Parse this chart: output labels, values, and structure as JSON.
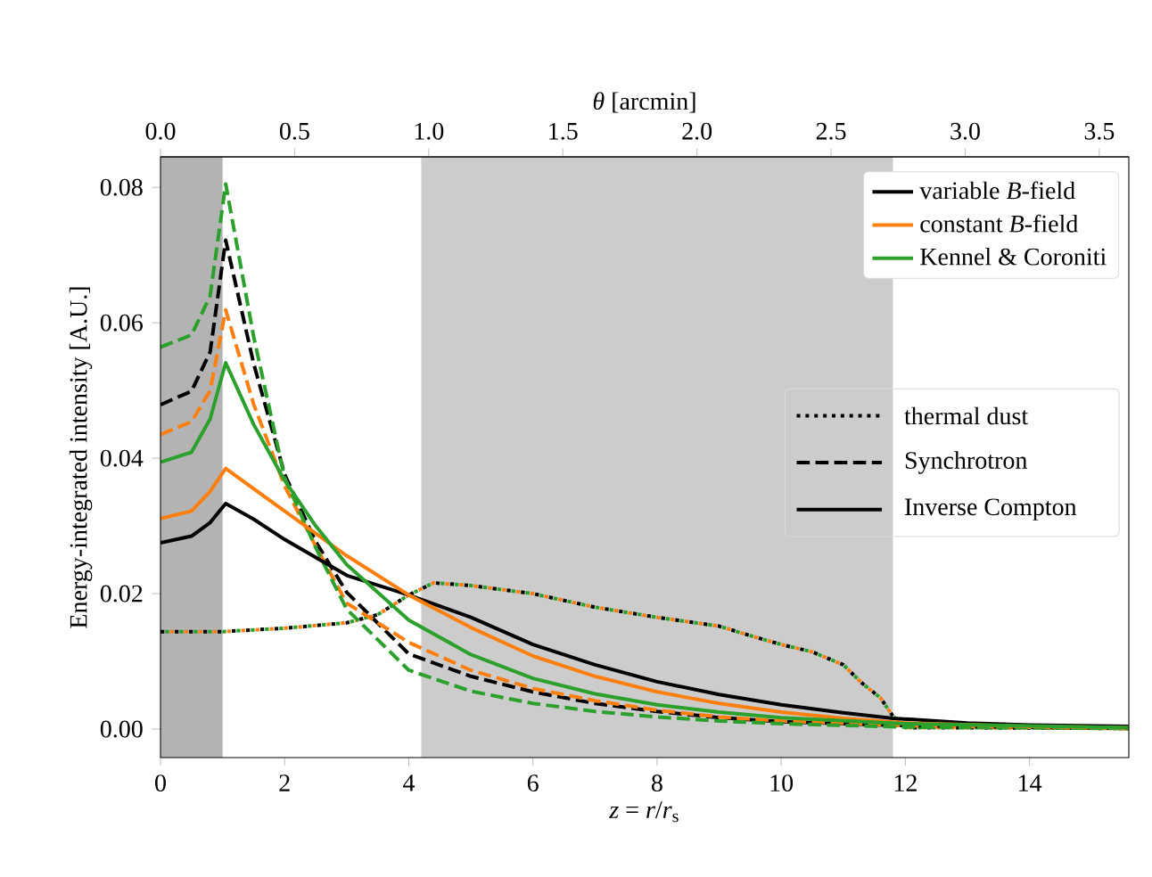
{
  "chart_data": {
    "type": "line",
    "xlabel": "*z* = *r*/*r*$_{s}$",
    "ylabel": "Energy-integrated intensity [A.U.]",
    "x2label": "*θ* [arcmin]",
    "xlim": [
      0,
      15.6
    ],
    "xticks": [
      0,
      2,
      4,
      6,
      8,
      10,
      12,
      14
    ],
    "x2lim": [
      0,
      3.61
    ],
    "x2ticks": [
      {
        "value": 0,
        "label": "0.0"
      },
      0.5,
      {
        "value": 1,
        "label": "1.0"
      },
      1.5,
      {
        "value": 2,
        "label": "2.0"
      },
      2.5,
      {
        "value": 3,
        "label": "3.0"
      },
      3.5
    ],
    "ylim": [
      -0.0042,
      0.0845
    ],
    "yticks": [
      {
        "value": 0,
        "label": "0.00"
      },
      {
        "value": 0.02,
        "label": "0.02"
      },
      {
        "value": 0.04,
        "label": "0.04"
      },
      {
        "value": 0.06,
        "label": "0.06"
      },
      {
        "value": 0.08,
        "label": "0.08"
      }
    ],
    "grid": false,
    "legend": "top right",
    "bands": [
      {
        "axis": "x",
        "from": 0,
        "to": 1.0,
        "color": "#b3b3b3"
      },
      {
        "axis": "x",
        "from": 4.2,
        "to": 11.8,
        "color": "#cccccc"
      }
    ],
    "annotations": [
      "thermal dust",
      "Synchrotron",
      "Inverse Compton"
    ],
    "series": [
      {
        "color": "#000000",
        "line_style": "dotted",
        "x": [
          0,
          1,
          2,
          3,
          3.5,
          4,
          4.4,
          5,
          6,
          7,
          8,
          9,
          9.5,
          10,
          10.5,
          11,
          11.3,
          11.6,
          11.8,
          12,
          13,
          15.6
        ],
        "values": [
          0.0144,
          0.0144,
          0.0149,
          0.0157,
          0.0169,
          0.0198,
          0.0216,
          0.0212,
          0.02,
          0.018,
          0.0165,
          0.0152,
          0.0138,
          0.0125,
          0.0114,
          0.0095,
          0.0068,
          0.0046,
          0.0019,
          0.0002,
          0.0002,
          0.0001
        ]
      },
      {
        "color": "#ff7f0e",
        "line_style": "dotted",
        "x": [
          0,
          1,
          2,
          3,
          3.5,
          4,
          4.4,
          5,
          6,
          7,
          8,
          9,
          9.5,
          10,
          10.5,
          11,
          11.3,
          11.6,
          11.8,
          12,
          13,
          15.6
        ],
        "values": [
          0.0144,
          0.0144,
          0.0149,
          0.0157,
          0.0169,
          0.0198,
          0.0216,
          0.0212,
          0.02,
          0.018,
          0.0165,
          0.0152,
          0.0138,
          0.0125,
          0.0114,
          0.0095,
          0.0068,
          0.0046,
          0.0019,
          0.0002,
          0.0002,
          0.0001
        ]
      },
      {
        "color": "#2ca02c",
        "line_style": "dotted",
        "x": [
          0,
          1,
          2,
          3,
          3.5,
          4,
          4.4,
          5,
          6,
          7,
          8,
          9,
          9.5,
          10,
          10.5,
          11,
          11.3,
          11.6,
          11.8,
          12,
          13,
          15.6
        ],
        "values": [
          0.0144,
          0.0144,
          0.0149,
          0.0157,
          0.0169,
          0.0198,
          0.0216,
          0.0212,
          0.02,
          0.018,
          0.0165,
          0.0152,
          0.0138,
          0.0125,
          0.0114,
          0.0095,
          0.0068,
          0.0046,
          0.0019,
          0.0002,
          0.0002,
          0.0001
        ]
      },
      {
        "color": "#000000",
        "line_style": "dashed",
        "x": [
          0,
          0.5,
          0.8,
          1.05,
          1.5,
          2,
          2.5,
          3,
          4,
          5,
          6,
          7,
          8,
          9,
          10,
          12,
          15.6
        ],
        "values": [
          0.0479,
          0.0499,
          0.0557,
          0.0722,
          0.054,
          0.0376,
          0.0277,
          0.0202,
          0.0111,
          0.0078,
          0.0055,
          0.0038,
          0.0026,
          0.0017,
          0.0011,
          0.0005,
          0.0001
        ]
      },
      {
        "color": "#ff7f0e",
        "line_style": "dashed",
        "x": [
          0,
          0.5,
          0.8,
          1.05,
          1.5,
          2,
          2.5,
          3,
          4,
          5,
          6,
          7,
          8,
          9,
          10,
          12,
          15.6
        ],
        "values": [
          0.0435,
          0.0454,
          0.05,
          0.0619,
          0.048,
          0.0359,
          0.027,
          0.0186,
          0.0128,
          0.0087,
          0.006,
          0.0042,
          0.0028,
          0.0018,
          0.0012,
          0.0005,
          0.0001
        ]
      },
      {
        "color": "#2ca02c",
        "line_style": "dashed",
        "x": [
          0,
          0.5,
          0.8,
          1.05,
          1.5,
          2,
          2.5,
          3,
          4,
          5,
          6,
          7,
          8,
          9,
          10,
          12,
          15.6
        ],
        "values": [
          0.0564,
          0.0582,
          0.064,
          0.0805,
          0.058,
          0.0371,
          0.0268,
          0.0177,
          0.0087,
          0.0056,
          0.0038,
          0.0026,
          0.0018,
          0.0012,
          0.0008,
          0.0003,
          0.0001
        ]
      },
      {
        "name": "variable *B*-field",
        "color": "#000000",
        "line_style": "solid",
        "x": [
          0,
          0.5,
          0.8,
          1.05,
          1.5,
          2,
          3,
          4,
          5,
          6,
          7,
          8,
          9,
          10,
          11,
          11.8,
          13,
          14,
          15.6
        ],
        "values": [
          0.0275,
          0.0285,
          0.0305,
          0.0333,
          0.031,
          0.028,
          0.0227,
          0.0198,
          0.0165,
          0.0125,
          0.0095,
          0.007,
          0.0051,
          0.0036,
          0.0024,
          0.0016,
          0.0009,
          0.0006,
          0.0004
        ]
      },
      {
        "name": "constant *B*-field",
        "color": "#ff7f0e",
        "line_style": "solid",
        "x": [
          0,
          0.5,
          0.8,
          1.05,
          1.5,
          2,
          3,
          4,
          5,
          6,
          7,
          8,
          9,
          10,
          11,
          12,
          14,
          15.6
        ],
        "values": [
          0.0311,
          0.0322,
          0.0351,
          0.0385,
          0.0355,
          0.0322,
          0.0256,
          0.0198,
          0.015,
          0.0108,
          0.0078,
          0.0055,
          0.0038,
          0.0025,
          0.0016,
          0.0009,
          0.0004,
          0.0002
        ]
      },
      {
        "name": "Kennel & Coroniti",
        "color": "#2ca02c",
        "line_style": "solid",
        "x": [
          0,
          0.5,
          0.8,
          1.05,
          1.5,
          2,
          2.5,
          3,
          4,
          5,
          6,
          7,
          8,
          9,
          10,
          12,
          15.6
        ],
        "values": [
          0.0394,
          0.0409,
          0.0458,
          0.0541,
          0.045,
          0.0367,
          0.03,
          0.0243,
          0.0161,
          0.011,
          0.0075,
          0.0052,
          0.0036,
          0.0025,
          0.0017,
          0.0008,
          0.0002
        ]
      }
    ]
  }
}
